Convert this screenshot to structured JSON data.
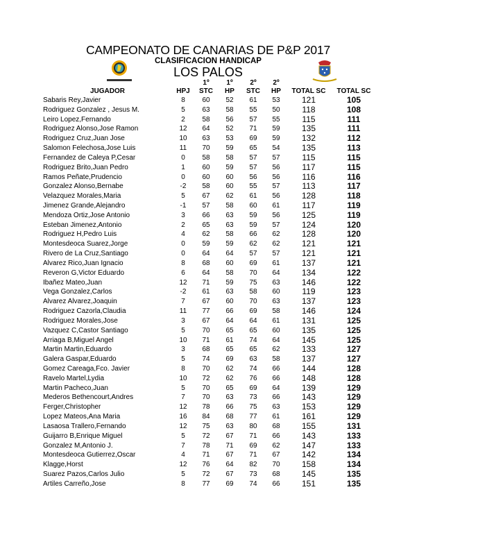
{
  "title": "CAMPEONATO DE CANARIAS DE P&P 2017",
  "subtitle": "CLASIFICACION HANDICAP",
  "club": "LOS PALOS",
  "logo_text": "LOS PALOS",
  "headers": {
    "player": "JUGADOR",
    "hpj": "HPJ",
    "r1_top": "1º",
    "r1_stc": "STC",
    "r1hp_top": "1º",
    "r1_hp": "HP",
    "r2_top": "2º",
    "r2_stc": "STC",
    "r2hp_top": "2º",
    "r2_hp": "HP",
    "total_sc": "TOTAL SC",
    "total_sc2": "TOTAL SC"
  },
  "rows": [
    [
      "Sabaris Rey,Javier",
      "8",
      "60",
      "52",
      "61",
      "53",
      "121",
      "105"
    ],
    [
      "Rodriguez Gonzalez , Jesus M.",
      "5",
      "63",
      "58",
      "55",
      "50",
      "118",
      "108"
    ],
    [
      "Leiro Lopez,Fernando",
      "2",
      "58",
      "56",
      "57",
      "55",
      "115",
      "111"
    ],
    [
      "Rodriguez Alonso,Jose Ramon",
      "12",
      "64",
      "52",
      "71",
      "59",
      "135",
      "111"
    ],
    [
      "Rodriguez Cruz,Juan Jose",
      "10",
      "63",
      "53",
      "69",
      "59",
      "132",
      "112"
    ],
    [
      "Salomon Felechosa,Jose Luis",
      "11",
      "70",
      "59",
      "65",
      "54",
      "135",
      "113"
    ],
    [
      "Fernandez de Caleya P,Cesar",
      "0",
      "58",
      "58",
      "57",
      "57",
      "115",
      "115"
    ],
    [
      "Rodriguez Brito,Juan Pedro",
      "1",
      "60",
      "59",
      "57",
      "56",
      "117",
      "115"
    ],
    [
      "Ramos Peñate,Prudencio",
      "0",
      "60",
      "60",
      "56",
      "56",
      "116",
      "116"
    ],
    [
      "Gonzalez Alonso,Bernabe",
      "-2",
      "58",
      "60",
      "55",
      "57",
      "113",
      "117"
    ],
    [
      "Velazquez Morales,Maria",
      "5",
      "67",
      "62",
      "61",
      "56",
      "128",
      "118"
    ],
    [
      "Jimenez Grande,Alejandro",
      "-1",
      "57",
      "58",
      "60",
      "61",
      "117",
      "119"
    ],
    [
      "Mendoza Ortiz,Jose Antonio",
      "3",
      "66",
      "63",
      "59",
      "56",
      "125",
      "119"
    ],
    [
      "Esteban Jimenez,Antonio",
      "2",
      "65",
      "63",
      "59",
      "57",
      "124",
      "120"
    ],
    [
      "Rodriguez H,Pedro Luis",
      "4",
      "62",
      "58",
      "66",
      "62",
      "128",
      "120"
    ],
    [
      "Montesdeoca Suarez,Jorge",
      "0",
      "59",
      "59",
      "62",
      "62",
      "121",
      "121"
    ],
    [
      "Rivero de La Cruz,Santiago",
      "0",
      "64",
      "64",
      "57",
      "57",
      "121",
      "121"
    ],
    [
      "Alvarez Rico,Juan Ignacio",
      "8",
      "68",
      "60",
      "69",
      "61",
      "137",
      "121"
    ],
    [
      "Reveron G,Victor Eduardo",
      "6",
      "64",
      "58",
      "70",
      "64",
      "134",
      "122"
    ],
    [
      "Ibañez Mateo,Juan",
      "12",
      "71",
      "59",
      "75",
      "63",
      "146",
      "122"
    ],
    [
      "Vega Gonzalez,Carlos",
      "-2",
      "61",
      "63",
      "58",
      "60",
      "119",
      "123"
    ],
    [
      "Alvarez Alvarez,Joaquin",
      "7",
      "67",
      "60",
      "70",
      "63",
      "137",
      "123"
    ],
    [
      "Rodriguez Cazorla,Claudia",
      "11",
      "77",
      "66",
      "69",
      "58",
      "146",
      "124"
    ],
    [
      "Rodriguez Morales,Jose",
      "3",
      "67",
      "64",
      "64",
      "61",
      "131",
      "125"
    ],
    [
      "Vazquez C,Castor Santiago",
      "5",
      "70",
      "65",
      "65",
      "60",
      "135",
      "125"
    ],
    [
      "Arriaga B,Miguel Angel",
      "10",
      "71",
      "61",
      "74",
      "64",
      "145",
      "125"
    ],
    [
      "Martin Martin,Eduardo",
      "3",
      "68",
      "65",
      "65",
      "62",
      "133",
      "127"
    ],
    [
      "Galera Gaspar,Eduardo",
      "5",
      "74",
      "69",
      "63",
      "58",
      "137",
      "127"
    ],
    [
      "Gomez Careaga,Fco. Javier",
      "8",
      "70",
      "62",
      "74",
      "66",
      "144",
      "128"
    ],
    [
      "Ravelo Martel,Lydia",
      "10",
      "72",
      "62",
      "76",
      "66",
      "148",
      "128"
    ],
    [
      "Martin Pacheco,Juan",
      "5",
      "70",
      "65",
      "69",
      "64",
      "139",
      "129"
    ],
    [
      "Mederos Bethencourt,Andres",
      "7",
      "70",
      "63",
      "73",
      "66",
      "143",
      "129"
    ],
    [
      "Ferger,Christopher",
      "12",
      "78",
      "66",
      "75",
      "63",
      "153",
      "129"
    ],
    [
      "Lopez Mateos,Ana Maria",
      "16",
      "84",
      "68",
      "77",
      "61",
      "161",
      "129"
    ],
    [
      "Lasaosa Trallero,Fernando",
      "12",
      "75",
      "63",
      "80",
      "68",
      "155",
      "131"
    ],
    [
      "Guijarro B,Enrique Miguel",
      "5",
      "72",
      "67",
      "71",
      "66",
      "143",
      "133"
    ],
    [
      "Gonzalez M,Antonio J.",
      "7",
      "78",
      "71",
      "69",
      "62",
      "147",
      "133"
    ],
    [
      "Montesdeoca Gutierrez,Oscar",
      "4",
      "71",
      "67",
      "71",
      "67",
      "142",
      "134"
    ],
    [
      "Klagge,Horst",
      "12",
      "76",
      "64",
      "82",
      "70",
      "158",
      "134"
    ],
    [
      "Suarez Pazos,Carlos Julio",
      "5",
      "72",
      "67",
      "73",
      "68",
      "145",
      "135"
    ],
    [
      "Artiles Carreño,Jose",
      "8",
      "77",
      "69",
      "74",
      "66",
      "151",
      "135"
    ]
  ]
}
